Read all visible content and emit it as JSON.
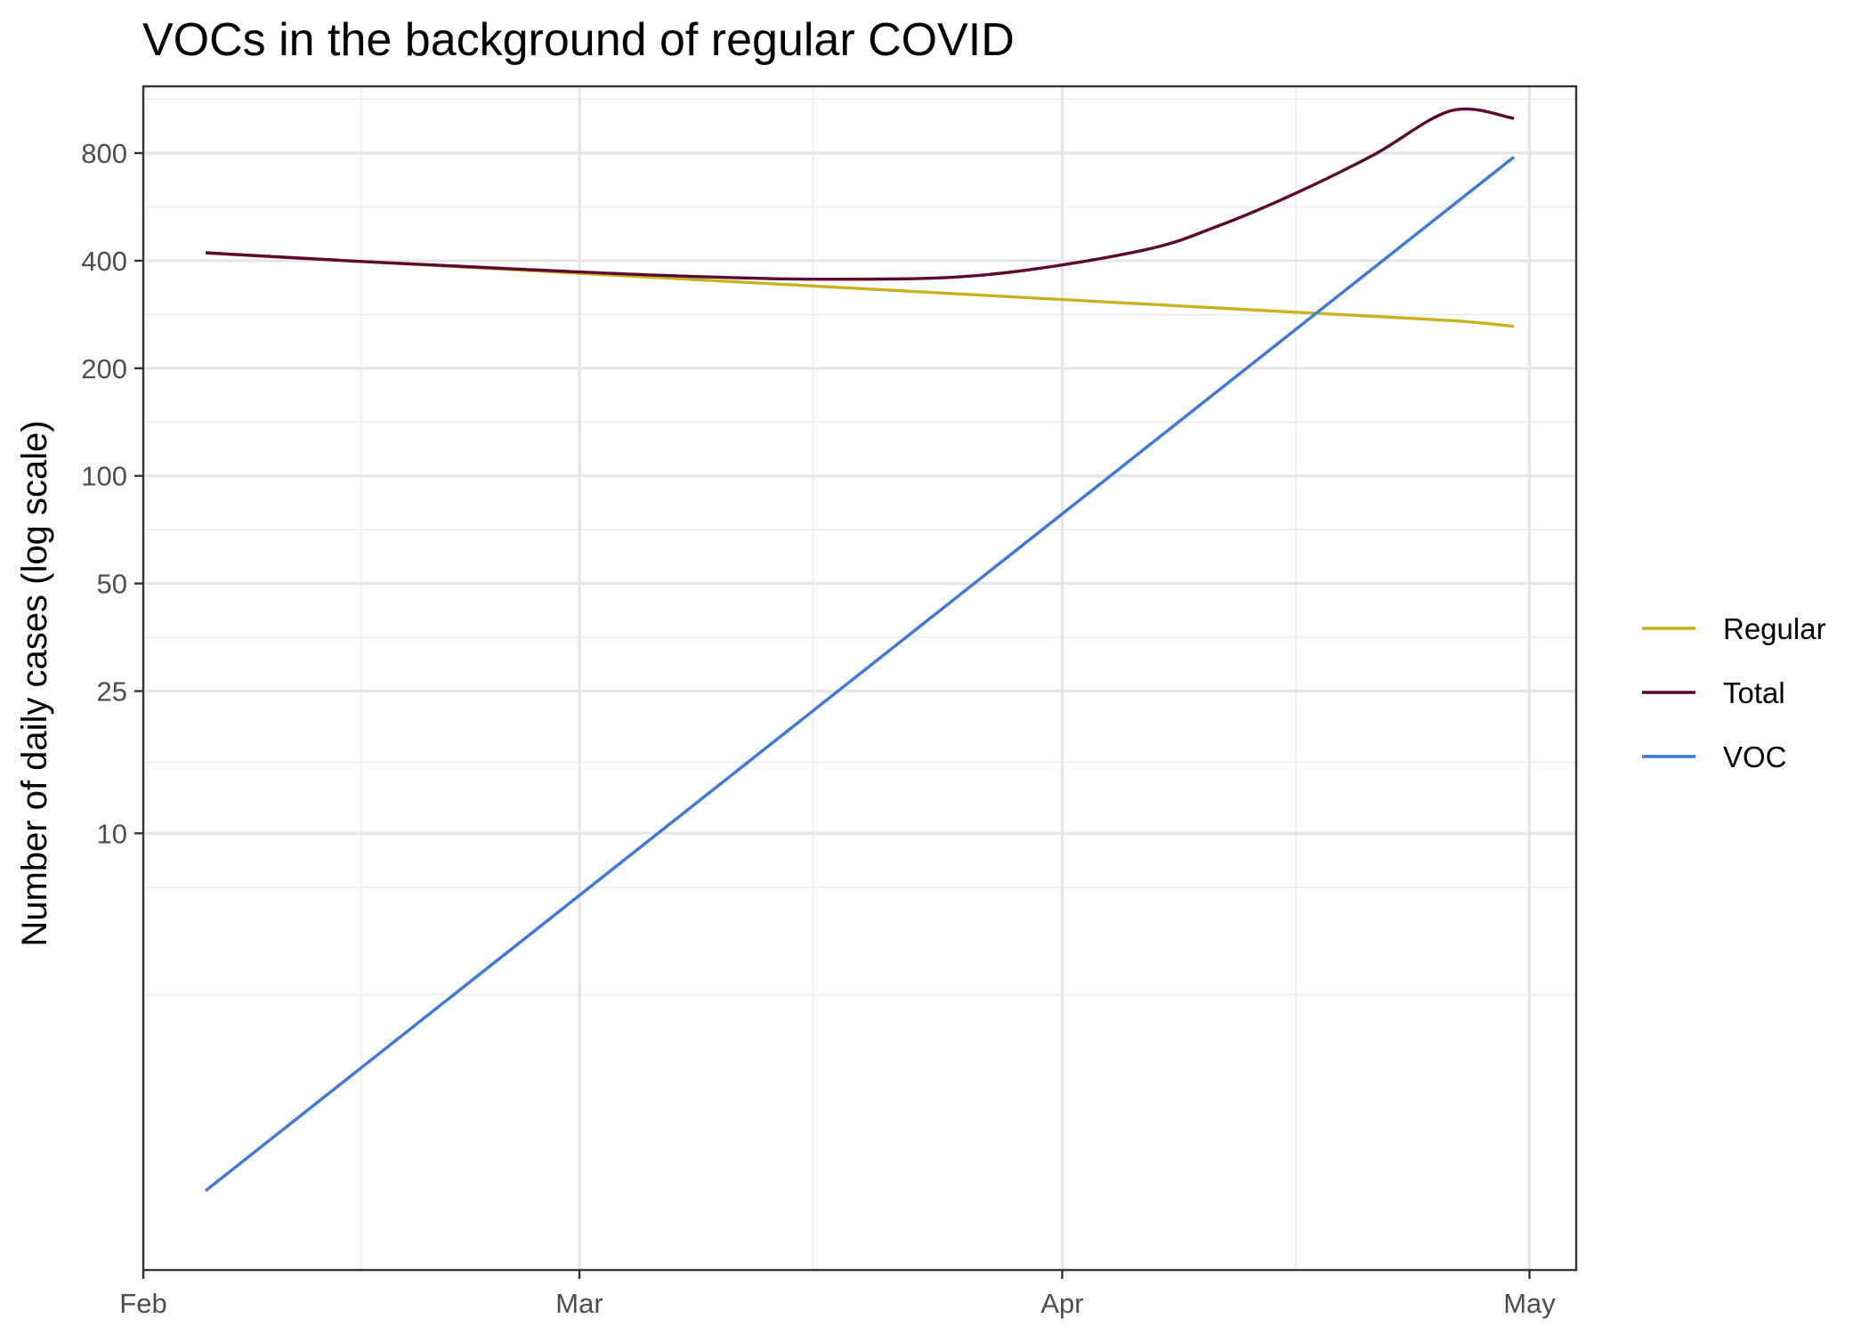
{
  "chart_data": {
    "type": "line",
    "title": "VOCs in the background of regular COVID",
    "xlabel": "",
    "ylabel": "Number of daily cases (log scale)",
    "y_scale": "log",
    "grid": true,
    "legend_position": "right",
    "x_ticks": [
      {
        "date": "2021-02-01",
        "label": "Feb"
      },
      {
        "date": "2021-03-01",
        "label": "Mar"
      },
      {
        "date": "2021-04-01",
        "label": "Apr"
      },
      {
        "date": "2021-05-01",
        "label": "May"
      }
    ],
    "x_minor_ticks": [
      "2021-02-15",
      "2021-03-16",
      "2021-04-16"
    ],
    "y_ticks": [
      10,
      25,
      50,
      100,
      200,
      400,
      800
    ],
    "y_minor_ticks": [
      3.535,
      7.07,
      15.81,
      35.36,
      70.71,
      141.4,
      282.8,
      565.7,
      1131
    ],
    "xlim": [
      "2021-02-01",
      "2021-05-04"
    ],
    "ylim": [
      0.6,
      1230
    ],
    "series": [
      {
        "name": "Regular",
        "color": "#C9B21F",
        "x": [
          "2021-02-05",
          "2021-02-15",
          "2021-02-25",
          "2021-03-07",
          "2021-03-17",
          "2021-03-27",
          "2021-04-06",
          "2021-04-16",
          "2021-04-26",
          "2021-04-30"
        ],
        "y": [
          420,
          398,
          377,
          357,
          338,
          320,
          303,
          287,
          272,
          262
        ]
      },
      {
        "name": "Total",
        "color": "#5C0631",
        "x": [
          "2021-02-05",
          "2021-02-15",
          "2021-02-25",
          "2021-03-07",
          "2021-03-17",
          "2021-03-27",
          "2021-04-06",
          "2021-04-11",
          "2021-04-16",
          "2021-04-21",
          "2021-04-26",
          "2021-04-30"
        ],
        "y": [
          421,
          398,
          379,
          363,
          355,
          365,
          426,
          500,
          618,
          791,
          1052,
          1000
        ]
      },
      {
        "name": "VOC",
        "color": "#3B78DB",
        "x": [
          "2021-02-05",
          "2021-04-30"
        ],
        "y": [
          1.0,
          780
        ]
      }
    ]
  }
}
